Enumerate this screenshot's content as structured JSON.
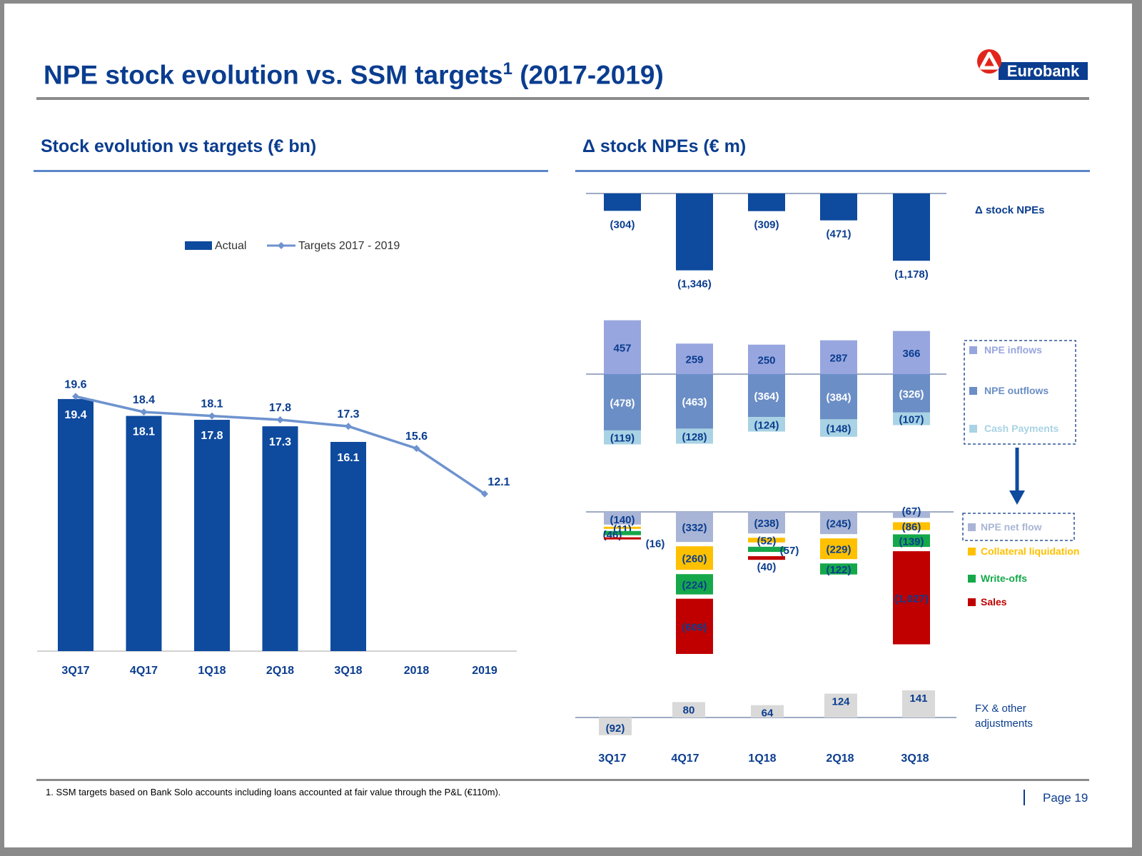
{
  "header": {
    "title": "NPE stock evolution vs. SSM targets",
    "title_sup": "1",
    "title_suffix": " (2017-2019)",
    "logo_text": "Eurobank"
  },
  "colors": {
    "brand_blue": "#0a3d8f",
    "bar_blue": "#0e4a9e",
    "line_blue": "#6e93cf",
    "inflow": "#98a6df",
    "outflow": "#6b8ec6",
    "cash": "#a9d3e4",
    "netflow": "#a9b5d6",
    "collateral": "#ffc000",
    "writeoff": "#15a84a",
    "sales": "#c00000",
    "fx": "#d9d9d9"
  },
  "left_section": {
    "title": "Stock evolution vs targets (€ bn)"
  },
  "right_section": {
    "title": "Δ stock NPEs (€ m)"
  },
  "chart_data": [
    {
      "type": "bar",
      "title": "Stock evolution vs targets (€ bn)",
      "categories": [
        "3Q17",
        "4Q17",
        "1Q18",
        "2Q18",
        "3Q18",
        "2018",
        "2019"
      ],
      "ylim": [
        0,
        20
      ],
      "legend_position": "top-center",
      "series": [
        {
          "name": "Actual",
          "type": "bar",
          "values": [
            19.4,
            18.1,
            17.8,
            17.3,
            16.1,
            null,
            null
          ]
        },
        {
          "name": "Targets 2017 - 2019",
          "type": "line",
          "values": [
            19.6,
            18.4,
            18.1,
            17.8,
            17.3,
            15.6,
            12.1
          ]
        }
      ]
    },
    {
      "type": "bar",
      "title": "Δ stock NPEs (€ m)",
      "categories": [
        "3Q17",
        "4Q17",
        "1Q18",
        "2Q18",
        "3Q18"
      ],
      "panels": [
        {
          "label": "Δ stock NPEs",
          "series": [
            {
              "name": "Δ stock NPEs",
              "values": [
                -304,
                -1346,
                -309,
                -471,
                -1178
              ],
              "labels": [
                "(304)",
                "(1,346)",
                "(309)",
                "(471)",
                "(1,178)"
              ]
            }
          ]
        },
        {
          "series": [
            {
              "name": "NPE inflows",
              "values": [
                457,
                259,
                250,
                287,
                366
              ],
              "labels": [
                "457",
                "259",
                "250",
                "287",
                "366"
              ]
            },
            {
              "name": "NPE outflows",
              "values": [
                -478,
                -463,
                -364,
                -384,
                -326
              ],
              "labels": [
                "(478)",
                "(463)",
                "(364)",
                "(384)",
                "(326)"
              ]
            },
            {
              "name": "Cash Payments",
              "values": [
                -119,
                -128,
                -124,
                -148,
                -107
              ],
              "labels": [
                "(119)",
                "(128)",
                "(124)",
                "(148)",
                "(107)"
              ]
            }
          ]
        },
        {
          "series": [
            {
              "name": "NPE net flow",
              "values": [
                -140,
                -332,
                -238,
                -245,
                -67
              ],
              "labels": [
                "(140)",
                "(332)",
                "(238)",
                "(245)",
                "(67)"
              ]
            },
            {
              "name": "Collateral liquidation",
              "values": [
                -11,
                -260,
                -52,
                -229,
                -86
              ],
              "labels": [
                "(11)",
                "(260)",
                "(52)",
                "(229)",
                "(86)"
              ]
            },
            {
              "name": "Write-offs",
              "values": [
                -46,
                -224,
                -57,
                -122,
                -139
              ],
              "labels": [
                "(46)",
                "(224)",
                "(57)",
                "(122)",
                "(139)"
              ]
            },
            {
              "name": "Sales",
              "values": [
                -16,
                -609,
                -40,
                null,
                -1027
              ],
              "labels": [
                "(16)",
                "(609)",
                "(40)",
                "",
                "(1,027)"
              ]
            }
          ]
        },
        {
          "label": "FX & other adjustments",
          "series": [
            {
              "name": "FX & other adjustments",
              "values": [
                -92,
                80,
                64,
                124,
                141
              ],
              "labels": [
                "(92)",
                "80",
                "64",
                "124",
                "141"
              ]
            }
          ]
        }
      ]
    }
  ],
  "footer": {
    "footnote": "1. SSM targets based on Bank Solo accounts including loans accounted at fair value through the P&L (€110m).",
    "page": "Page 19"
  }
}
